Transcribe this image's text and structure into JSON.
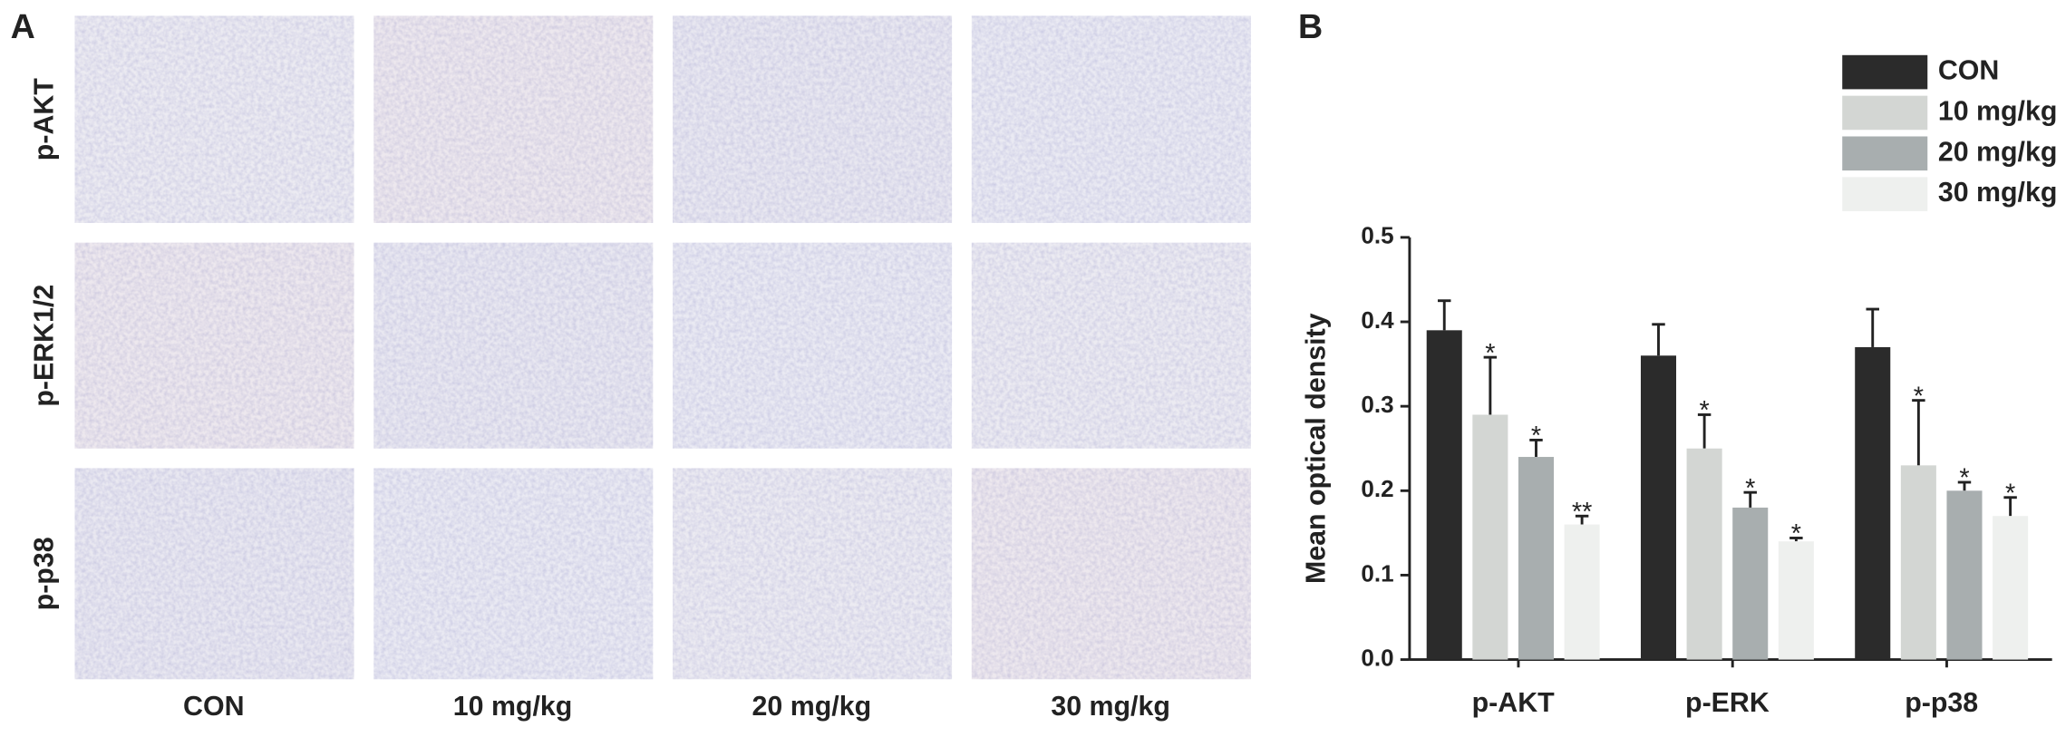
{
  "panel_a": {
    "label": "A",
    "rows": [
      "p-AKT",
      "p-ERK1/2",
      "p-p38"
    ],
    "columns": [
      "CON",
      "10 mg/kg",
      "20 mg/kg",
      "30 mg/kg"
    ]
  },
  "chart_data": {
    "type": "bar",
    "panel_label": "B",
    "y_label": "Mean optical density",
    "categories": [
      "p-AKT",
      "p-ERK",
      "p-p38"
    ],
    "series": [
      {
        "name": "CON",
        "color": "#2b2b2b",
        "values": [
          0.39,
          0.36,
          0.37
        ],
        "errors": [
          0.035,
          0.037,
          0.045
        ],
        "annotations": [
          null,
          null,
          null
        ]
      },
      {
        "name": "10 mg/kg",
        "color": "#d3d6d3",
        "values": [
          0.29,
          0.25,
          0.23
        ],
        "errors": [
          0.068,
          0.04,
          0.077
        ],
        "annotations": [
          "*",
          "*",
          "*"
        ]
      },
      {
        "name": "20 mg/kg",
        "color": "#a8aeaf",
        "values": [
          0.24,
          0.18,
          0.2
        ],
        "errors": [
          0.02,
          0.018,
          0.01
        ],
        "annotations": [
          "*",
          "*",
          "*"
        ]
      },
      {
        "name": "30 mg/kg",
        "color": "#eef0ee",
        "values": [
          0.16,
          0.14,
          0.17
        ],
        "errors": [
          0.01,
          0.004,
          0.022
        ],
        "annotations": [
          "**",
          "*",
          "*"
        ]
      }
    ],
    "ylim": [
      0,
      0.5
    ],
    "yticks": [
      {
        "value": 0,
        "label": "0.0"
      },
      0.1,
      0.2,
      0.3,
      0.4,
      0.5
    ],
    "legend": "top-right"
  }
}
